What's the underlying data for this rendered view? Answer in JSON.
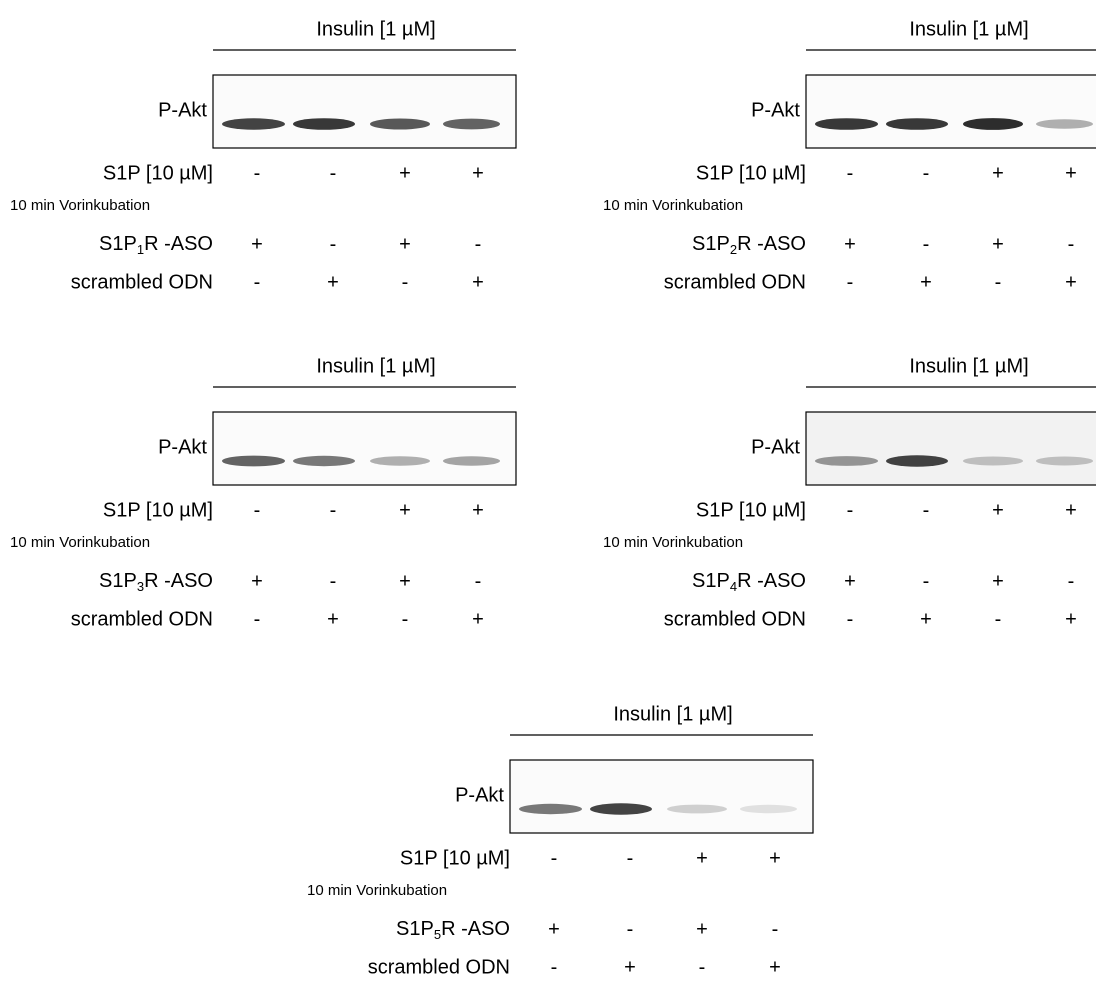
{
  "panels": [
    {
      "header": "Insulin [1 µM]",
      "blot_label": "P-Akt",
      "rows": [
        {
          "label": "S1P [10 µM]",
          "note": "10 min Vorinkubation",
          "signs": [
            "-",
            "-",
            "+",
            "+"
          ]
        },
        {
          "label": {
            "main": "S1P",
            "sub": "1",
            "rest": "R -ASO"
          },
          "signs": [
            "+",
            "-",
            "+",
            "-"
          ]
        },
        {
          "label": "scrambled ODN",
          "signs": [
            "-",
            "+",
            "-",
            "+"
          ]
        }
      ]
    },
    {
      "header": "Insulin [1 µM]",
      "blot_label": "P-Akt",
      "rows": [
        {
          "label": "S1P [10 µM]",
          "note": "10 min Vorinkubation",
          "signs": [
            "-",
            "-",
            "+",
            "+"
          ]
        },
        {
          "label": {
            "main": "S1P",
            "sub": "2",
            "rest": "R -ASO"
          },
          "signs": [
            "+",
            "-",
            "+",
            "-"
          ]
        },
        {
          "label": "scrambled ODN",
          "signs": [
            "-",
            "+",
            "-",
            "+"
          ]
        }
      ]
    },
    {
      "header": "Insulin [1 µM]",
      "blot_label": "P-Akt",
      "rows": [
        {
          "label": "S1P [10 µM]",
          "note": "10 min Vorinkubation",
          "signs": [
            "-",
            "-",
            "+",
            "+"
          ]
        },
        {
          "label": {
            "main": "S1P",
            "sub": "3",
            "rest": "R -ASO"
          },
          "signs": [
            "+",
            "-",
            "+",
            "-"
          ]
        },
        {
          "label": "scrambled ODN",
          "signs": [
            "-",
            "+",
            "-",
            "+"
          ]
        }
      ]
    },
    {
      "header": "Insulin [1 µM]",
      "blot_label": "P-Akt",
      "rows": [
        {
          "label": "S1P [10 µM]",
          "note": "10 min Vorinkubation",
          "signs": [
            "-",
            "-",
            "+",
            "+"
          ]
        },
        {
          "label": {
            "main": "S1P",
            "sub": "4",
            "rest": "R -ASO"
          },
          "signs": [
            "+",
            "-",
            "+",
            "-"
          ]
        },
        {
          "label": "scrambled ODN",
          "signs": [
            "-",
            "+",
            "-",
            "+"
          ]
        }
      ]
    },
    {
      "header": "Insulin [1 µM]",
      "blot_label": "P-Akt",
      "rows": [
        {
          "label": "S1P [10 µM]",
          "note": "10 min Vorinkubation",
          "signs": [
            "-",
            "-",
            "+",
            "+"
          ]
        },
        {
          "label": {
            "main": "S1P",
            "sub": "5",
            "rest": "R -ASO"
          },
          "signs": [
            "+",
            "-",
            "+",
            "-"
          ]
        },
        {
          "label": "scrambled ODN",
          "signs": [
            "-",
            "+",
            "-",
            "+"
          ]
        }
      ]
    }
  ]
}
